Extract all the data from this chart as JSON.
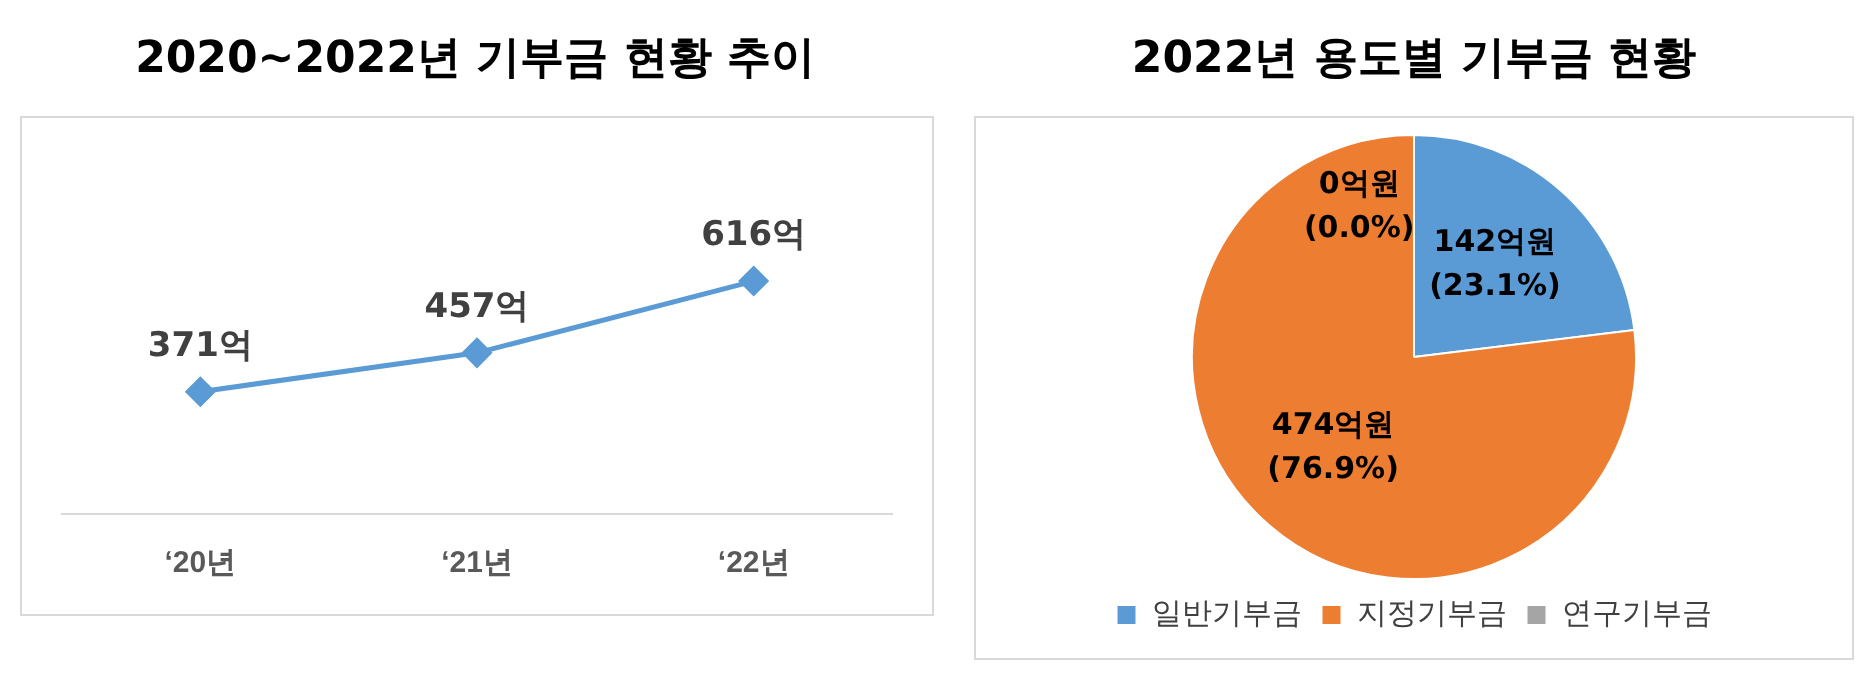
{
  "chart_data": [
    {
      "type": "line",
      "title": "2020~2022년 기부금 현황 추이",
      "categories": [
        "‘20년",
        "‘21년",
        "‘22년"
      ],
      "series": [
        {
          "color": "#5b9bd5",
          "values": [
            371,
            457,
            616
          ],
          "value_labels": [
            "371억",
            "457억",
            "616억"
          ]
        }
      ],
      "marker": "diamond",
      "grid": false,
      "legend": false,
      "tick_labels": "x"
    },
    {
      "type": "pie",
      "title": "2022년 용도별 기부금 현황",
      "categories": [
        "일반기부금",
        "지정기부금",
        "연구기부금"
      ],
      "values": [
        142,
        474,
        0
      ],
      "colors": [
        "#5b9bd5",
        "#ed7d31",
        "#a5a5a5"
      ],
      "value_labels": [
        "142억원\n(23.1%)",
        "474억원\n(76.9%)",
        "0억원\n(0.0%)"
      ],
      "legend": "bottom"
    }
  ]
}
